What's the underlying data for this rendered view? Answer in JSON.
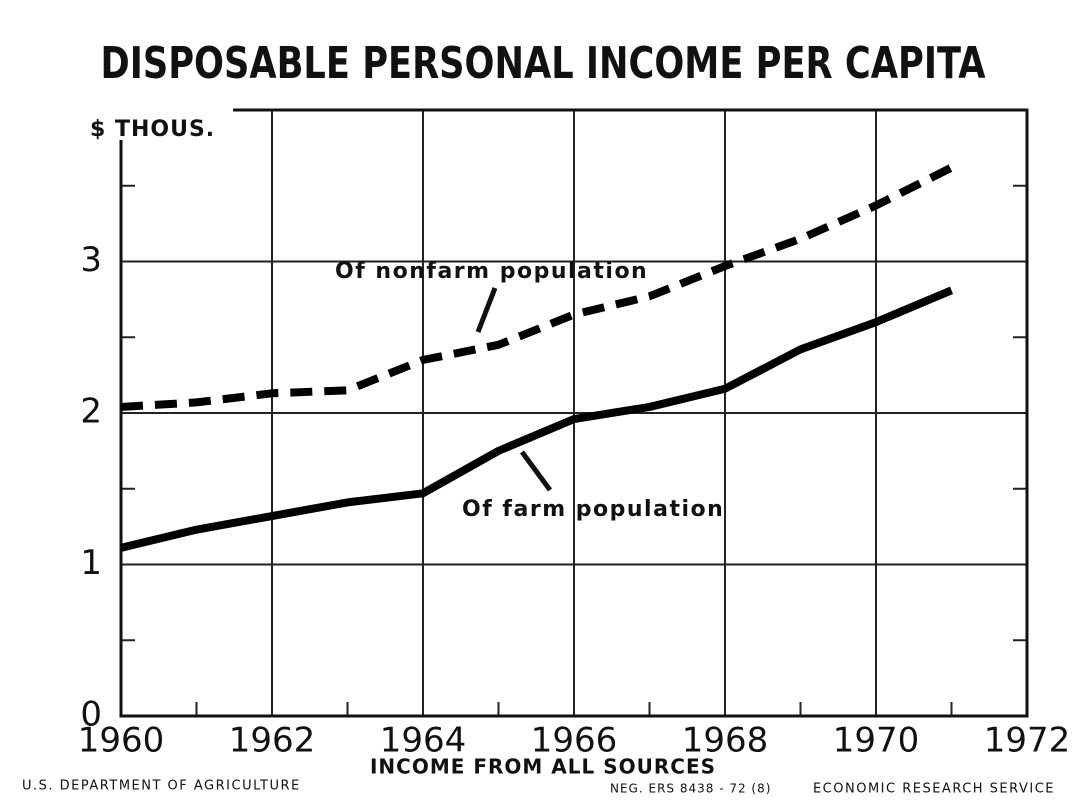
{
  "chart_data": {
    "type": "line",
    "title": "DISPOSABLE PERSONAL INCOME PER CAPITA",
    "y_label": "$ THOUS.",
    "x_label": "INCOME FROM ALL SOURCES",
    "x": [
      1960,
      1961,
      1962,
      1963,
      1964,
      1965,
      1966,
      1967,
      1968,
      1969,
      1970,
      1971
    ],
    "series": [
      {
        "name": "Of nonfarm population",
        "color": "#000000",
        "dashed": true,
        "values": [
          2.04,
          2.07,
          2.13,
          2.15,
          2.35,
          2.45,
          2.65,
          2.77,
          2.97,
          3.15,
          3.37,
          3.62
        ]
      },
      {
        "name": "Of farm population",
        "color": "#000000",
        "dashed": false,
        "values": [
          1.11,
          1.23,
          1.32,
          1.41,
          1.47,
          1.75,
          1.96,
          2.04,
          2.16,
          2.42,
          2.6,
          2.81
        ]
      }
    ],
    "xlim": [
      1960,
      1972
    ],
    "xticks": [
      1960,
      1962,
      1964,
      1966,
      1968,
      1970,
      1972
    ],
    "ylim": [
      0,
      4
    ],
    "yticks": [
      0,
      1,
      2,
      3
    ],
    "grid": true,
    "footer": {
      "left": "U.S. DEPARTMENT OF AGRICULTURE",
      "center": "NEG. ERS 8438 - 72 (8)",
      "right": "ECONOMIC RESEARCH SERVICE"
    }
  }
}
